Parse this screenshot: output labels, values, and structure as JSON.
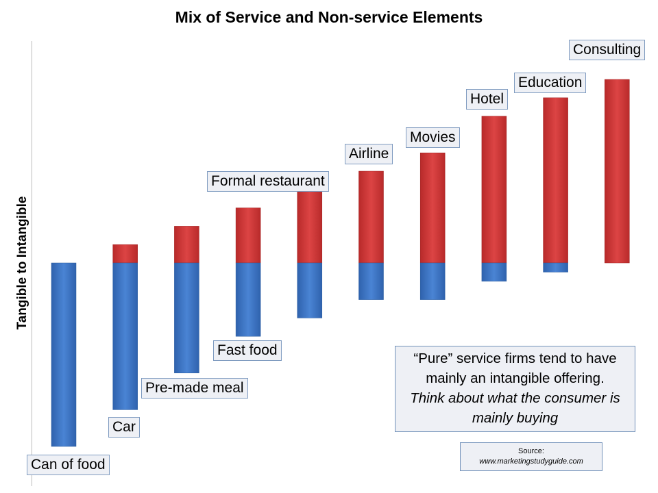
{
  "chart_data": {
    "type": "bar",
    "stacked": "diverging",
    "title": "Mix of Service and Non-service Elements",
    "ylabel": "Tangible  to Intangible",
    "xlabel": "",
    "categories": [
      "Can of food",
      "Car",
      "Pre-made meal",
      "Fast food",
      "Formal restaurant",
      "Airline",
      "Movies",
      "Hotel",
      "Education",
      "Consulting"
    ],
    "series": [
      {
        "key": "tangible",
        "color": "#3a73c4",
        "values": [
          10,
          8,
          6,
          4,
          3,
          2,
          2,
          1,
          0.5,
          0
        ]
      },
      {
        "key": "intangible",
        "color": "#cc3333",
        "values": [
          0,
          1,
          2,
          3,
          4,
          5,
          6,
          8,
          9,
          10
        ]
      }
    ],
    "grid": false
  },
  "note": {
    "line1": "“Pure” service firms tend to have mainly an intangible offering.",
    "line2": "Think about what the consumer is mainly buying"
  },
  "source": {
    "label": "Source:",
    "url": "www.marketingstudyguide.com"
  }
}
